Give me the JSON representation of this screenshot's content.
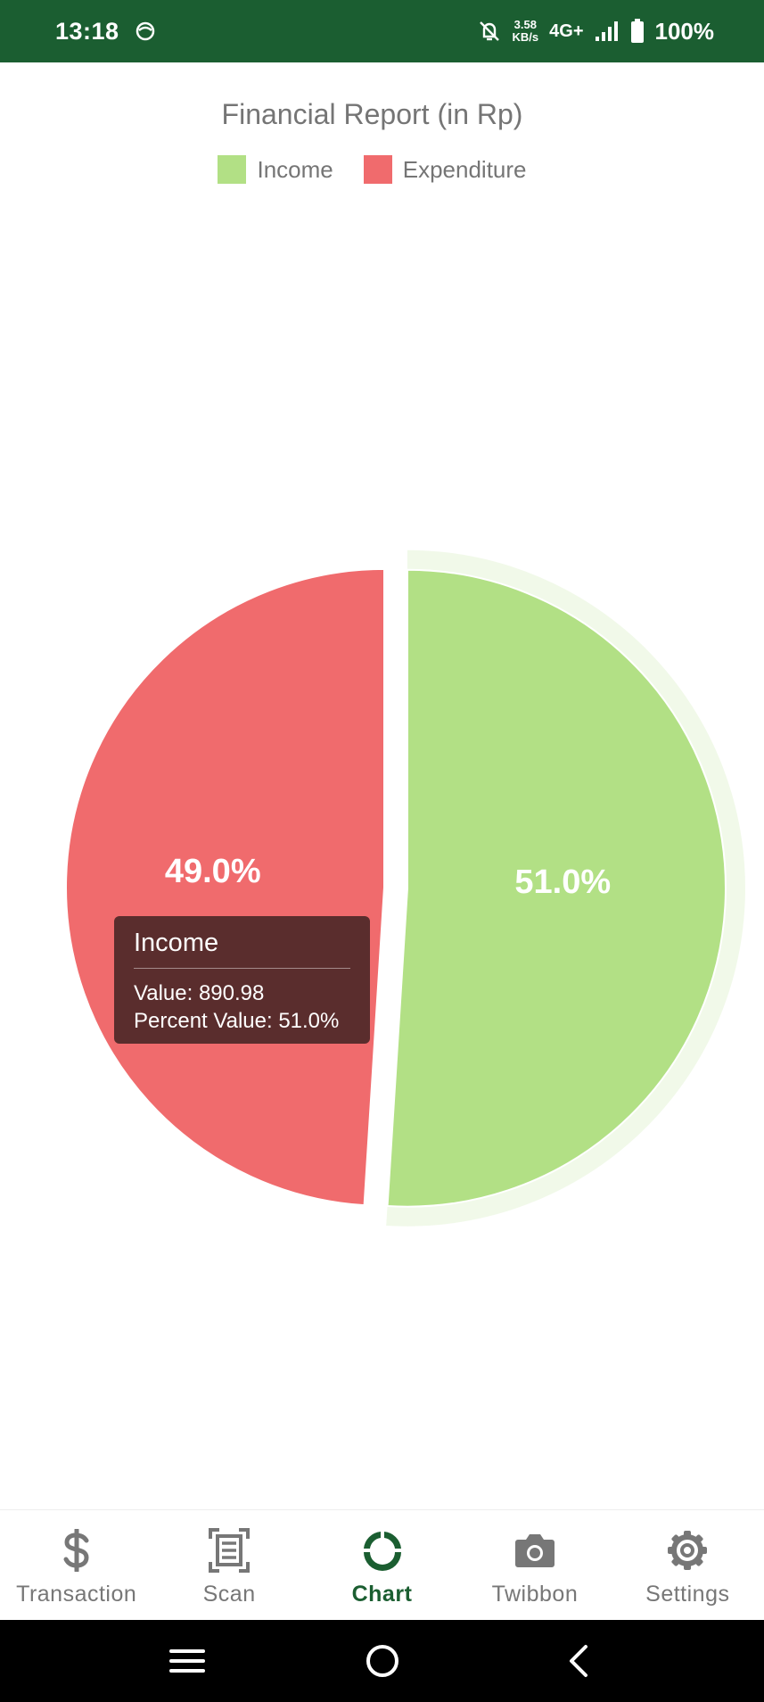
{
  "status_bar": {
    "time": "13:18",
    "speed_value": "3.58",
    "speed_unit": "KB/s",
    "network": "4G+",
    "battery": "100%"
  },
  "chart_data": {
    "type": "pie",
    "title": "Financial Report (in Rp)",
    "legend_placement": "top",
    "slices": [
      {
        "name": "Income",
        "value": 890.98,
        "percent": 51.0,
        "label": "51.0%",
        "color": "#b2e085"
      },
      {
        "name": "Expenditure",
        "percent": 49.0,
        "label": "49.0%",
        "color": "#f06b6d"
      }
    ]
  },
  "tooltip": {
    "title": "Income",
    "value_line": "Value: 890.98",
    "percent_line": "Percent Value: 51.0%"
  },
  "bottom_nav": {
    "items": [
      {
        "label": "Transaction",
        "icon": "dollar-icon",
        "active": false
      },
      {
        "label": "Scan",
        "icon": "scan-document-icon",
        "active": false
      },
      {
        "label": "Chart",
        "icon": "donut-chart-icon",
        "active": true
      },
      {
        "label": "Twibbon",
        "icon": "camera-icon",
        "active": false
      },
      {
        "label": "Settings",
        "icon": "gear-icon",
        "active": false
      }
    ]
  },
  "colors": {
    "status_bar": "#1b5e31",
    "active_nav": "#1b5e31",
    "income": "#b2e085",
    "expenditure": "#f06b6d"
  }
}
